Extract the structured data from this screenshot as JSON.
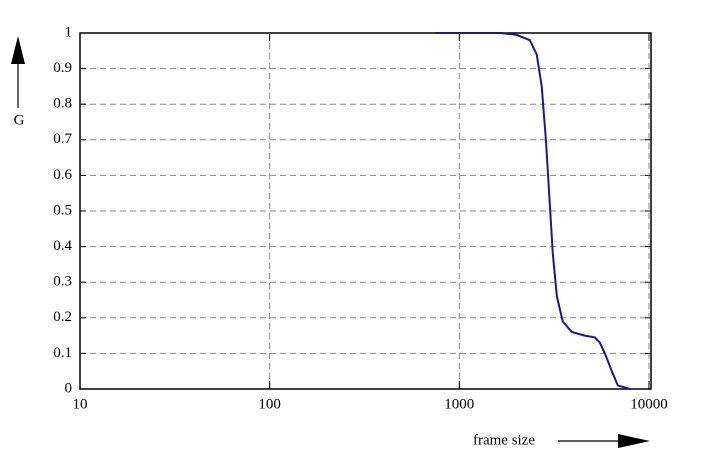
{
  "chart_data": {
    "type": "line",
    "xlabel": "frame size",
    "ylabel": "G",
    "xscale": "log",
    "grid": true,
    "xlim": [
      10,
      10250
    ],
    "ylim": [
      0,
      1
    ],
    "xticks": [
      10,
      100,
      1000,
      10000
    ],
    "yticks": [
      0,
      0.1,
      0.2,
      0.3,
      0.4,
      0.5,
      0.6,
      0.7,
      0.8,
      0.9,
      1
    ],
    "series": [
      {
        "color": "#1a1a8c",
        "x": [
          750,
          1640,
          2000,
          2350,
          2560,
          2720,
          2860,
          3000,
          3110,
          3270,
          3510,
          3920,
          4590,
          5190,
          5510,
          5860,
          6370,
          6850,
          7930
        ],
        "values": [
          1.0,
          1.0,
          0.995,
          0.98,
          0.94,
          0.85,
          0.7,
          0.52,
          0.38,
          0.26,
          0.19,
          0.16,
          0.15,
          0.145,
          0.13,
          0.1,
          0.05,
          0.01,
          0
        ]
      }
    ]
  }
}
